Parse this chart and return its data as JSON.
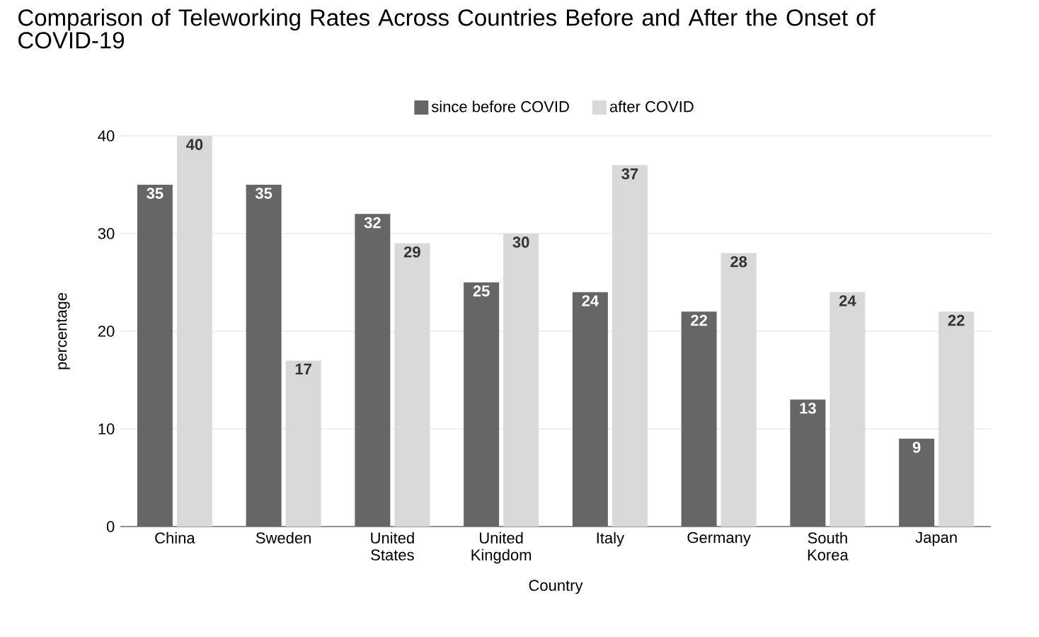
{
  "chart_data": {
    "type": "bar",
    "title": "Comparison of Teleworking Rates Across Countries Before and After the Onset of COVID-19",
    "xlabel": "Country",
    "ylabel": "percentage",
    "categories": [
      "China",
      "Sweden",
      "United States",
      "United Kingdom",
      "Italy",
      "Germany",
      "South Korea",
      "Japan"
    ],
    "series": [
      {
        "name": "since before COVID",
        "color": "#666666",
        "values": [
          35,
          35,
          32,
          25,
          24,
          22,
          13,
          9
        ]
      },
      {
        "name": "after COVID",
        "color": "#d9d9d9",
        "values": [
          40,
          17,
          29,
          30,
          37,
          28,
          24,
          22
        ]
      }
    ],
    "ylim": [
      0,
      40
    ],
    "yticks": [
      0,
      10,
      20,
      30,
      40
    ],
    "grid": "y",
    "legend": "top",
    "data_labels": true
  }
}
